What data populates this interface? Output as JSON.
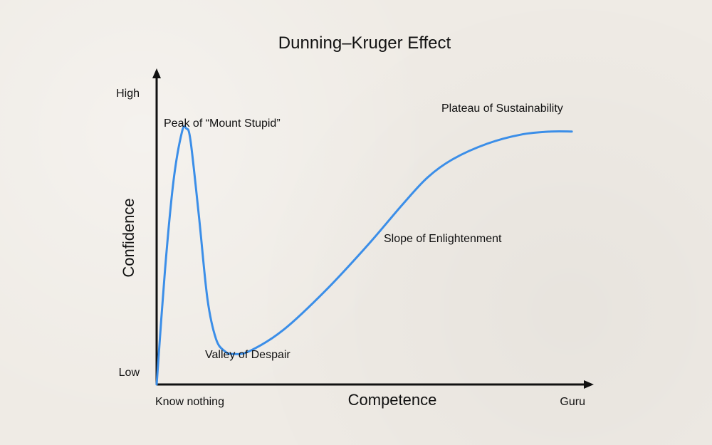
{
  "chart_data": {
    "type": "line",
    "title": "Dunning–Kruger Effect",
    "xlabel": "Competence",
    "ylabel": "Confidence",
    "x_tick_labels": [
      "Know nothing",
      "Guru"
    ],
    "y_tick_labels": [
      "Low",
      "High"
    ],
    "annotations": [
      "Peak of “Mount Stupid”",
      "Valley of Despair",
      "Slope of Enlightenment",
      "Plateau of Sustainability"
    ],
    "xlim": [
      0,
      100
    ],
    "ylim": [
      0,
      100
    ],
    "series": [
      {
        "color": "#3b8ee8",
        "points": [
          [
            0,
            0
          ],
          [
            2,
            38
          ],
          [
            4,
            67
          ],
          [
            6,
            83
          ],
          [
            7,
            84
          ],
          [
            8,
            80
          ],
          [
            10,
            55
          ],
          [
            12,
            28
          ],
          [
            14,
            15
          ],
          [
            16,
            11
          ],
          [
            18,
            10
          ],
          [
            22,
            11
          ],
          [
            30,
            18
          ],
          [
            40,
            31
          ],
          [
            50,
            46
          ],
          [
            58,
            59
          ],
          [
            64,
            68
          ],
          [
            70,
            74
          ],
          [
            78,
            79
          ],
          [
            86,
            82
          ],
          [
            93,
            83
          ],
          [
            98,
            83
          ]
        ]
      }
    ]
  },
  "colors": {
    "curve": "#3b8ee8",
    "axis": "#111111",
    "background": "#efebe5"
  }
}
